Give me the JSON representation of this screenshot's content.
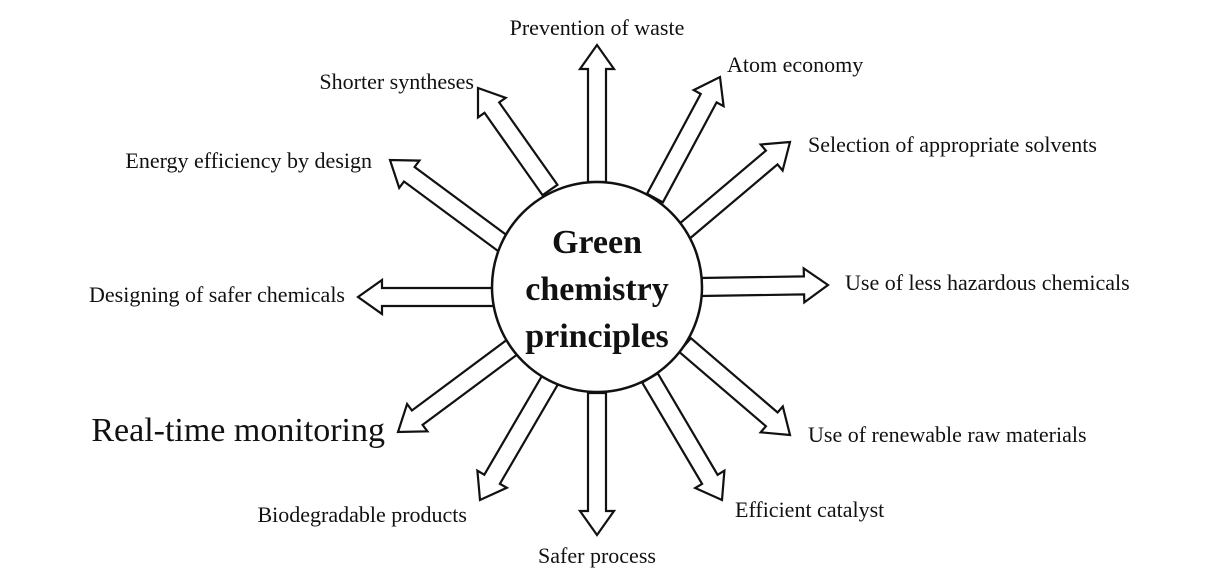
{
  "center": {
    "lines": [
      "Green",
      "chemistry",
      "principles"
    ]
  },
  "principles": [
    "Prevention of waste",
    "Atom economy",
    "Selection of appropriate solvents",
    "Use of less hazardous chemicals",
    "Use of renewable raw materials",
    "Efficient catalyst",
    "Safer process",
    "Biodegradable products",
    "Real-time monitoring",
    "Designing of safer chemicals",
    "Energy efficiency by design",
    "Shorter syntheses"
  ]
}
